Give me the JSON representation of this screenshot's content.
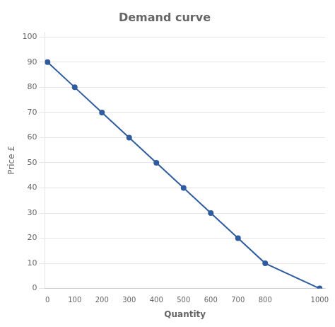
{
  "chart_data": {
    "type": "line",
    "title": "Demand curve",
    "xlabel": "Quantity",
    "ylabel": "Price £",
    "x": [
      0,
      100,
      200,
      300,
      400,
      500,
      600,
      700,
      800,
      1000
    ],
    "values": [
      90,
      80,
      70,
      60,
      50,
      40,
      30,
      20,
      10,
      0
    ],
    "color": "#2e5c9e",
    "marker": "o",
    "xlim": [
      -10,
      1020
    ],
    "ylim": [
      0,
      102
    ],
    "xticks": [
      0,
      100,
      200,
      300,
      400,
      500,
      600,
      700,
      800,
      1000
    ],
    "yticks": [
      0,
      10,
      20,
      30,
      40,
      50,
      60,
      70,
      80,
      90,
      100
    ],
    "grid": "y"
  }
}
